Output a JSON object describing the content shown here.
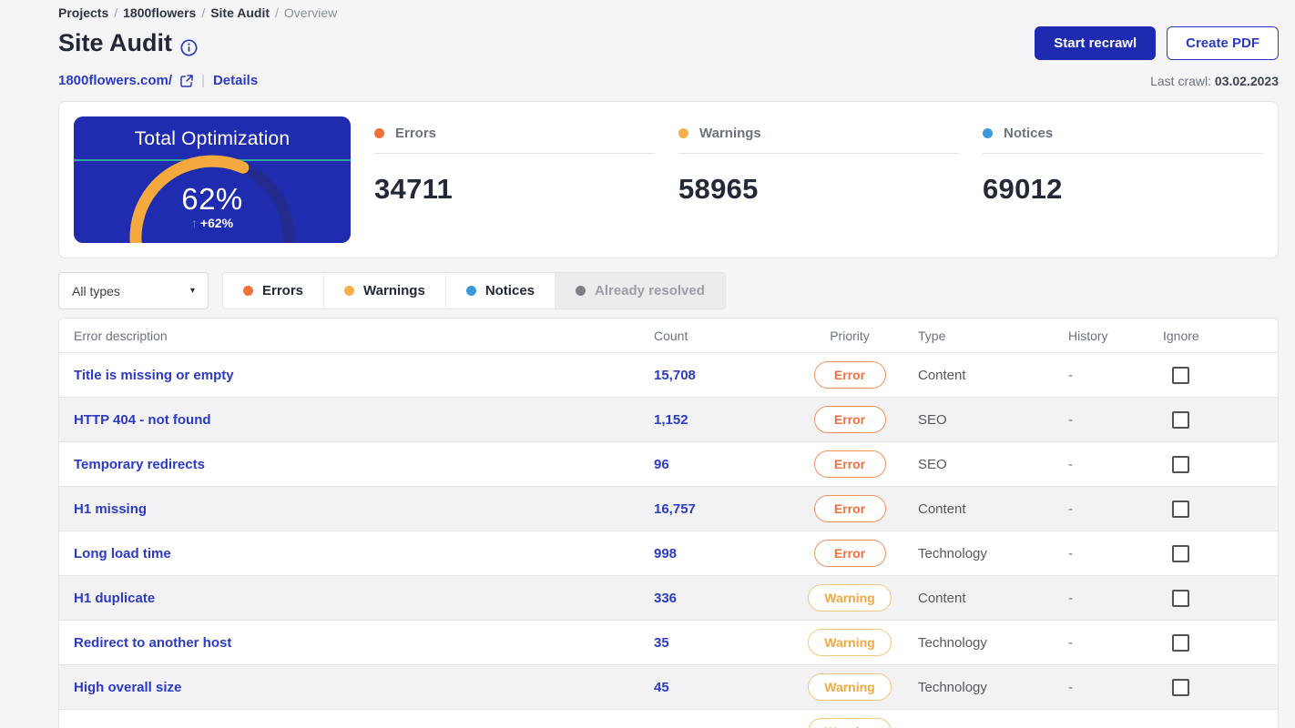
{
  "breadcrumb": {
    "separator": "/",
    "items": [
      "Projects",
      "1800flowers",
      "Site Audit"
    ],
    "current": "Overview"
  },
  "header": {
    "title": "Site Audit",
    "primary_button": "Start recrawl",
    "secondary_button": "Create PDF",
    "domain": "1800flowers.com/",
    "details_link": "Details",
    "pipe": "|",
    "last_crawl_label": "Last crawl:",
    "last_crawl_date": "03.02.2023"
  },
  "summary": {
    "gauge": {
      "title": "Total Optimization",
      "value": "62%",
      "delta": "+62%",
      "arrow": "↑",
      "percent": 62,
      "fill_color": "#f5a93f",
      "track_color": "#232c8e",
      "bg_color": "#1f2caf"
    },
    "stats": [
      {
        "label": "Errors",
        "value": "34711",
        "color": "#f2703c"
      },
      {
        "label": "Warnings",
        "value": "58965",
        "color": "#f5b04a"
      },
      {
        "label": "Notices",
        "value": "69012",
        "color": "#3b99d9"
      }
    ]
  },
  "filters": {
    "type_dropdown": "All types",
    "caret": "▾",
    "toggles": [
      {
        "label": "Errors",
        "color": "#f2703c",
        "active": true
      },
      {
        "label": "Warnings",
        "color": "#f5b04a",
        "active": true
      },
      {
        "label": "Notices",
        "color": "#3b99d9",
        "active": true
      },
      {
        "label": "Already resolved",
        "color": "#7c7f85",
        "active": false
      }
    ]
  },
  "table": {
    "columns": [
      "Error description",
      "Count",
      "Priority",
      "Type",
      "History",
      "Ignore"
    ],
    "rows": [
      {
        "description": "Title is missing or empty",
        "count": "15,708",
        "priority": "Error",
        "type": "Content",
        "history": "-"
      },
      {
        "description": "HTTP 404 - not found",
        "count": "1,152",
        "priority": "Error",
        "type": "SEO",
        "history": "-"
      },
      {
        "description": "Temporary redirects",
        "count": "96",
        "priority": "Error",
        "type": "SEO",
        "history": "-"
      },
      {
        "description": "H1 missing",
        "count": "16,757",
        "priority": "Error",
        "type": "Content",
        "history": "-"
      },
      {
        "description": "Long load time",
        "count": "998",
        "priority": "Error",
        "type": "Technology",
        "history": "-"
      },
      {
        "description": "H1 duplicate",
        "count": "336",
        "priority": "Warning",
        "type": "Content",
        "history": "-"
      },
      {
        "description": "Redirect to another host",
        "count": "35",
        "priority": "Warning",
        "type": "Technology",
        "history": "-"
      },
      {
        "description": "High overall size",
        "count": "45",
        "priority": "Warning",
        "type": "Technology",
        "history": "-"
      },
      {
        "description": "",
        "count": "",
        "priority": "Warning",
        "type": "",
        "history": ""
      }
    ]
  }
}
